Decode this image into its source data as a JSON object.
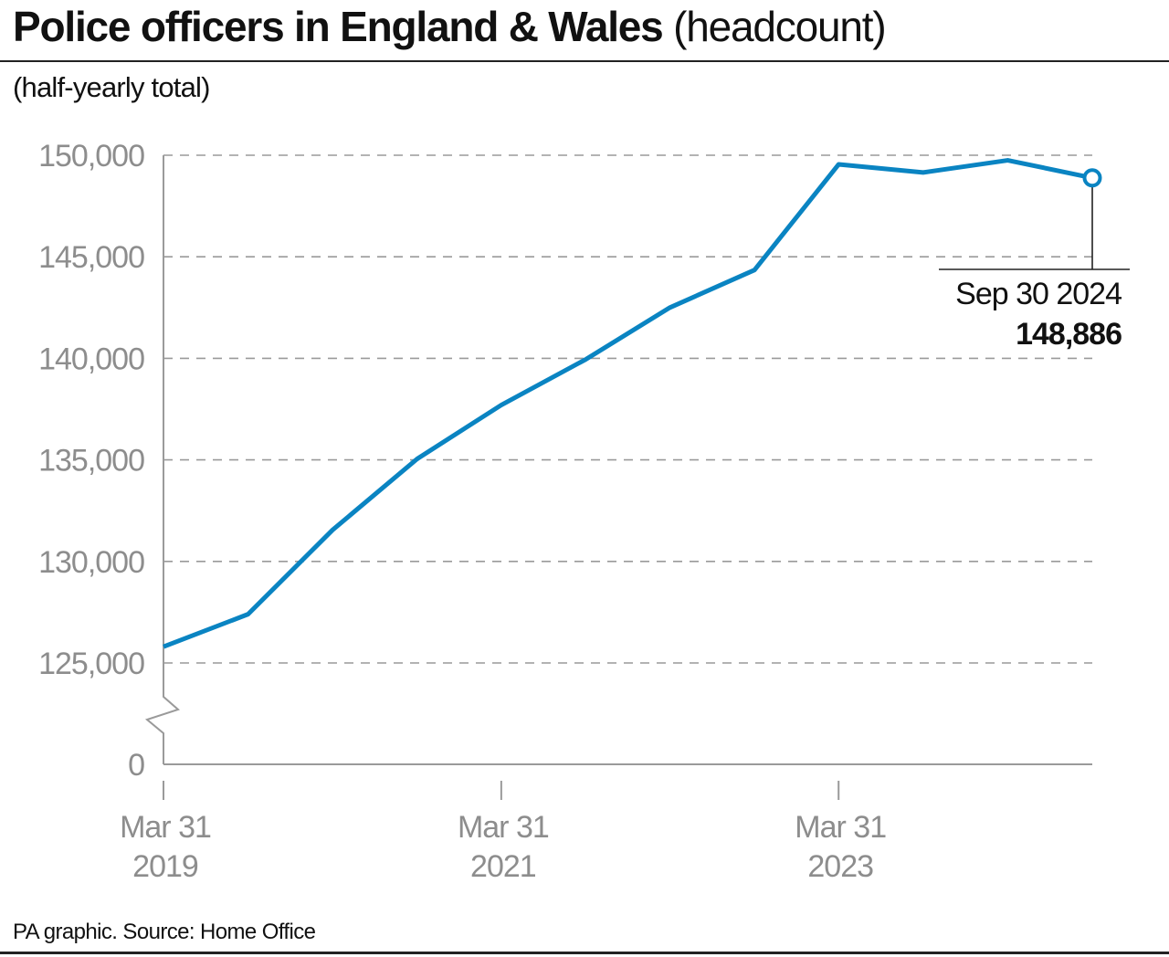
{
  "chart_data": {
    "type": "line",
    "title": "Police officers in England & Wales",
    "title_suffix": "(headcount)",
    "subtitle": "(half-yearly total)",
    "source": "PA graphic. Source: Home Office",
    "x": [
      "2019-03-31",
      "2019-09-30",
      "2020-03-31",
      "2020-09-30",
      "2021-03-31",
      "2021-09-30",
      "2022-03-31",
      "2022-09-30",
      "2023-03-31",
      "2023-09-30",
      "2024-03-31",
      "2024-09-30"
    ],
    "values": [
      125800,
      127400,
      131550,
      135050,
      137700,
      139950,
      142500,
      144350,
      149550,
      149150,
      149750,
      148886
    ],
    "ylim": [
      125000,
      150000
    ],
    "y_axis_break": true,
    "yticks": [
      {
        "value": 150000,
        "label": "150,000"
      },
      {
        "value": 145000,
        "label": "145,000"
      },
      {
        "value": 140000,
        "label": "140,000"
      },
      {
        "value": 135000,
        "label": "135,000"
      },
      {
        "value": 130000,
        "label": "130,000"
      },
      {
        "value": 125000,
        "label": "125,000"
      },
      {
        "value": 0,
        "label": "0"
      }
    ],
    "xticks": [
      {
        "date": "2019-03-31",
        "line1": "Mar 31",
        "line2": "2019"
      },
      {
        "date": "2021-03-31",
        "line1": "Mar 31",
        "line2": "2021"
      },
      {
        "date": "2023-03-31",
        "line1": "Mar 31",
        "line2": "2023"
      }
    ],
    "annotation": {
      "label": "Sep 30 2024",
      "value": "148,886"
    },
    "grid": "horizontal-dashed",
    "line_color": "#0a84c2",
    "axis_color": "#9a9a9a"
  }
}
